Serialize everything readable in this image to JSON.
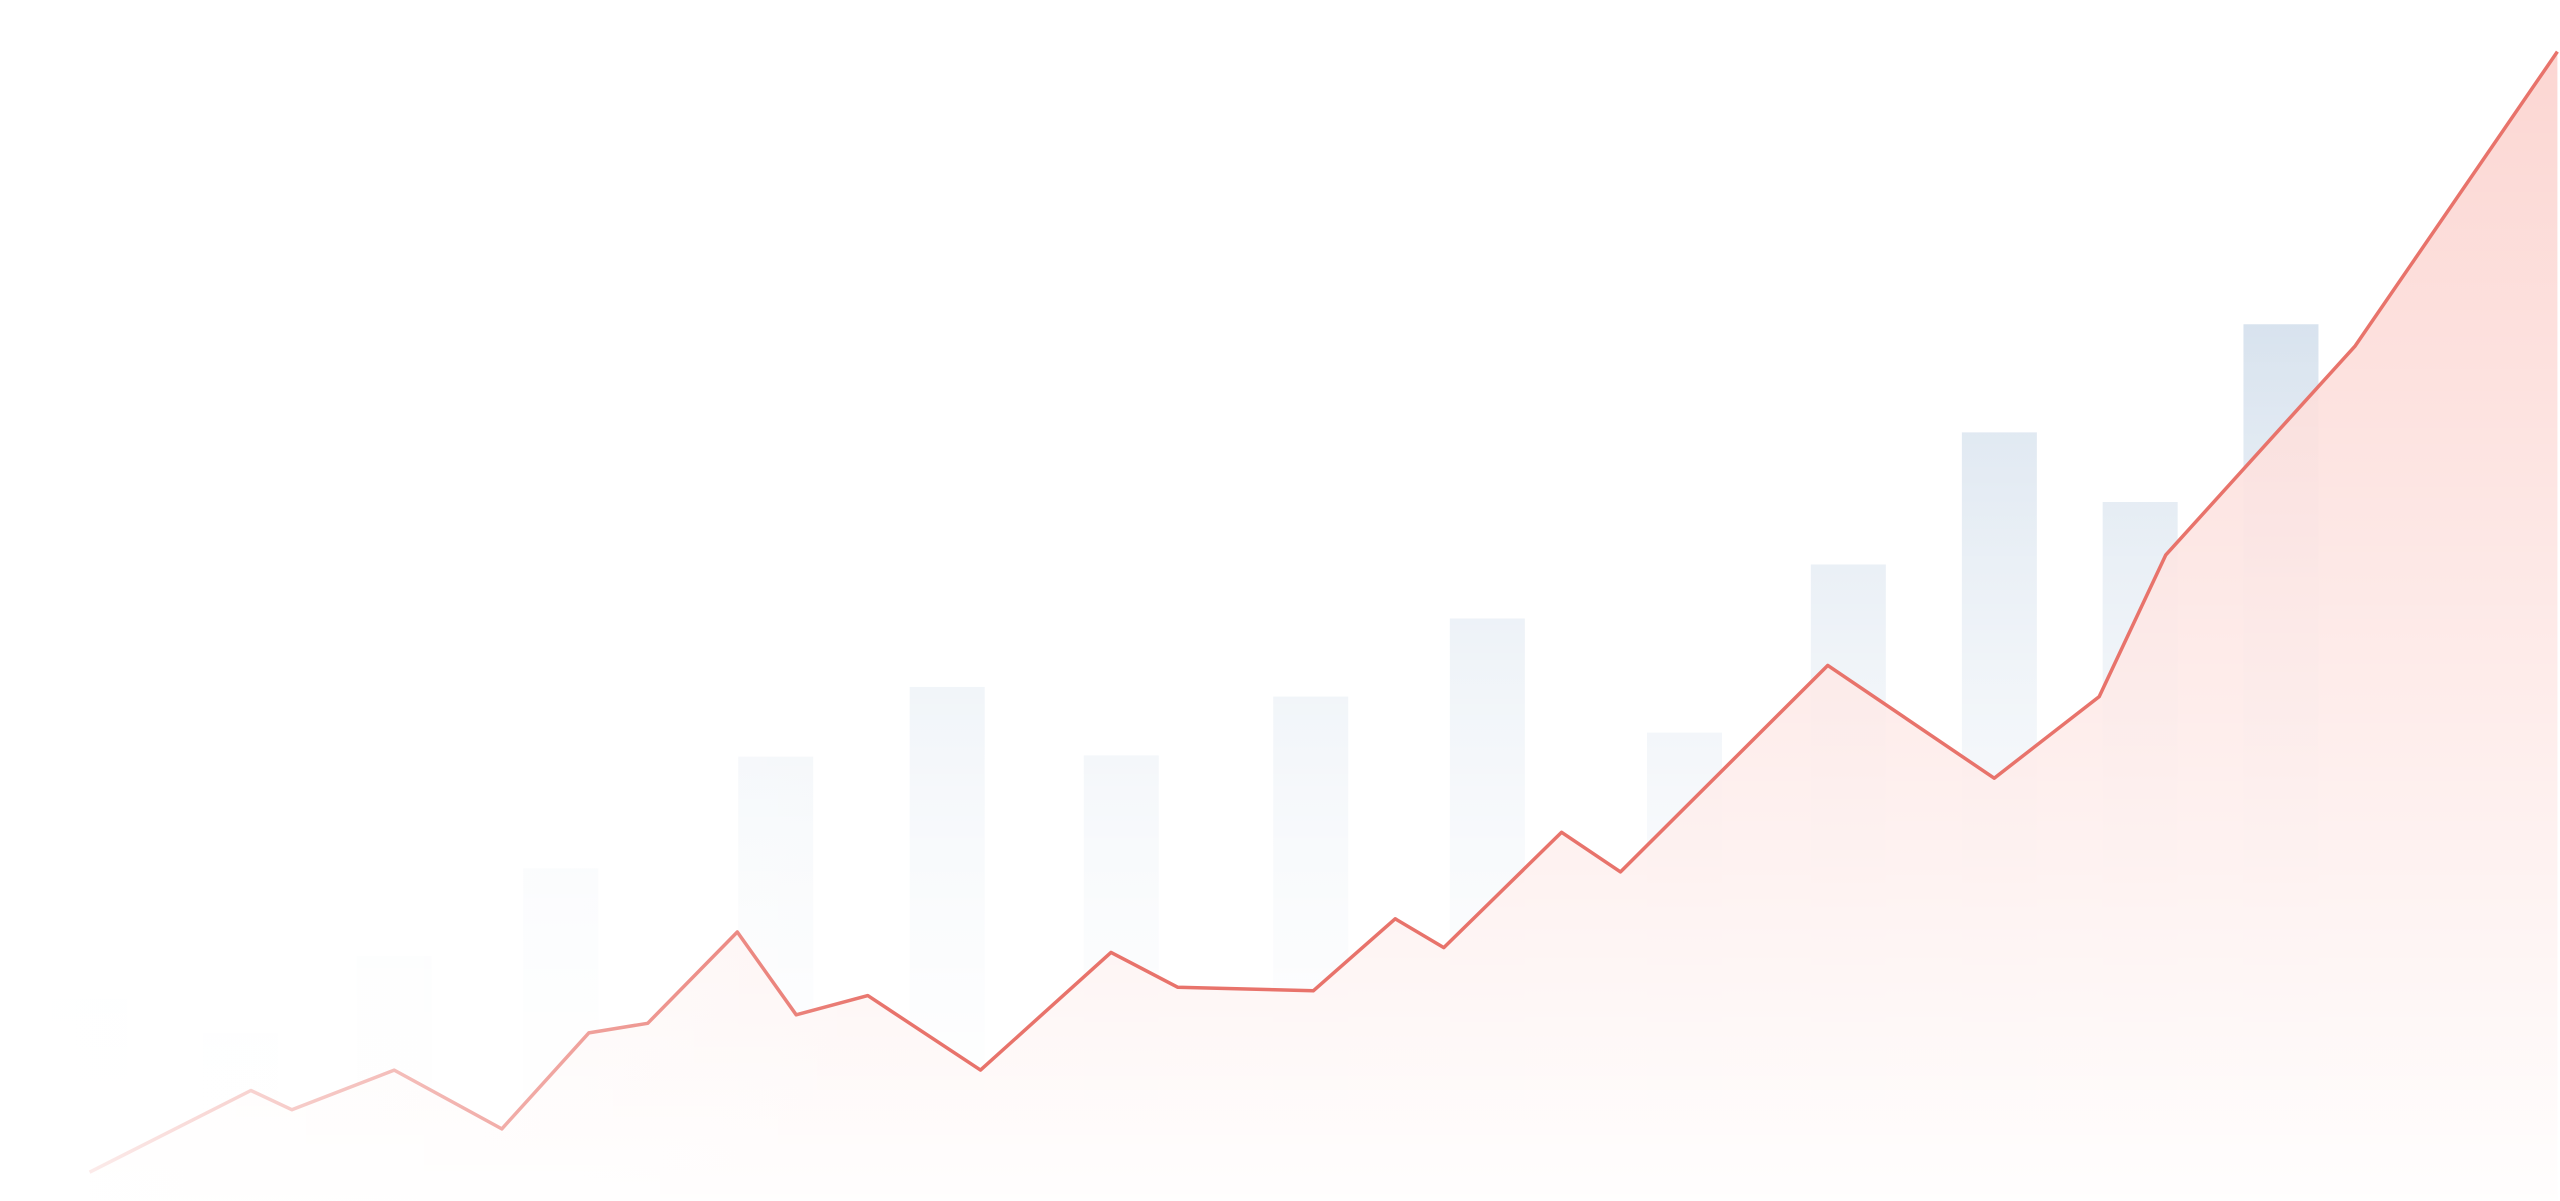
{
  "chart_data": {
    "type": "bar-line",
    "xlim": [
      0,
      100
    ],
    "ylim": [
      0,
      100
    ],
    "series": [
      {
        "type": "bar",
        "color": "#c9d8e8",
        "x": [
          3.5,
          9.4,
          15.4,
          21.9,
          30.3,
          37.0,
          43.8,
          51.2,
          58.1,
          65.8,
          72.2,
          78.1,
          83.6,
          89.1
        ],
        "values": [
          16.8,
          14,
          20.4,
          27.7,
          37,
          42.8,
          37.1,
          42,
          48.5,
          39,
          53,
          64,
          58.2,
          73
        ]
      },
      {
        "type": "line",
        "color": "#e8736b",
        "area_color": "#fcd0cc",
        "x": [
          3.5,
          9.8,
          11.4,
          15.4,
          19.6,
          23.0,
          25.3,
          28.8,
          31.1,
          33.9,
          38.3,
          43.4,
          46.0,
          51.3,
          54.5,
          56.4,
          61.0,
          63.3,
          71.4,
          77.9,
          82.0,
          84.6,
          92.0,
          99.9
        ],
        "values": [
          2.4,
          9.2,
          7.6,
          10.9,
          6.0,
          14.0,
          14.8,
          22.4,
          15.5,
          17.1,
          10.9,
          20.7,
          17.8,
          17.5,
          23.5,
          21.1,
          30.7,
          27.4,
          44.6,
          35.2,
          42.0,
          53.8,
          71.2,
          95.7
        ]
      }
    ]
  }
}
